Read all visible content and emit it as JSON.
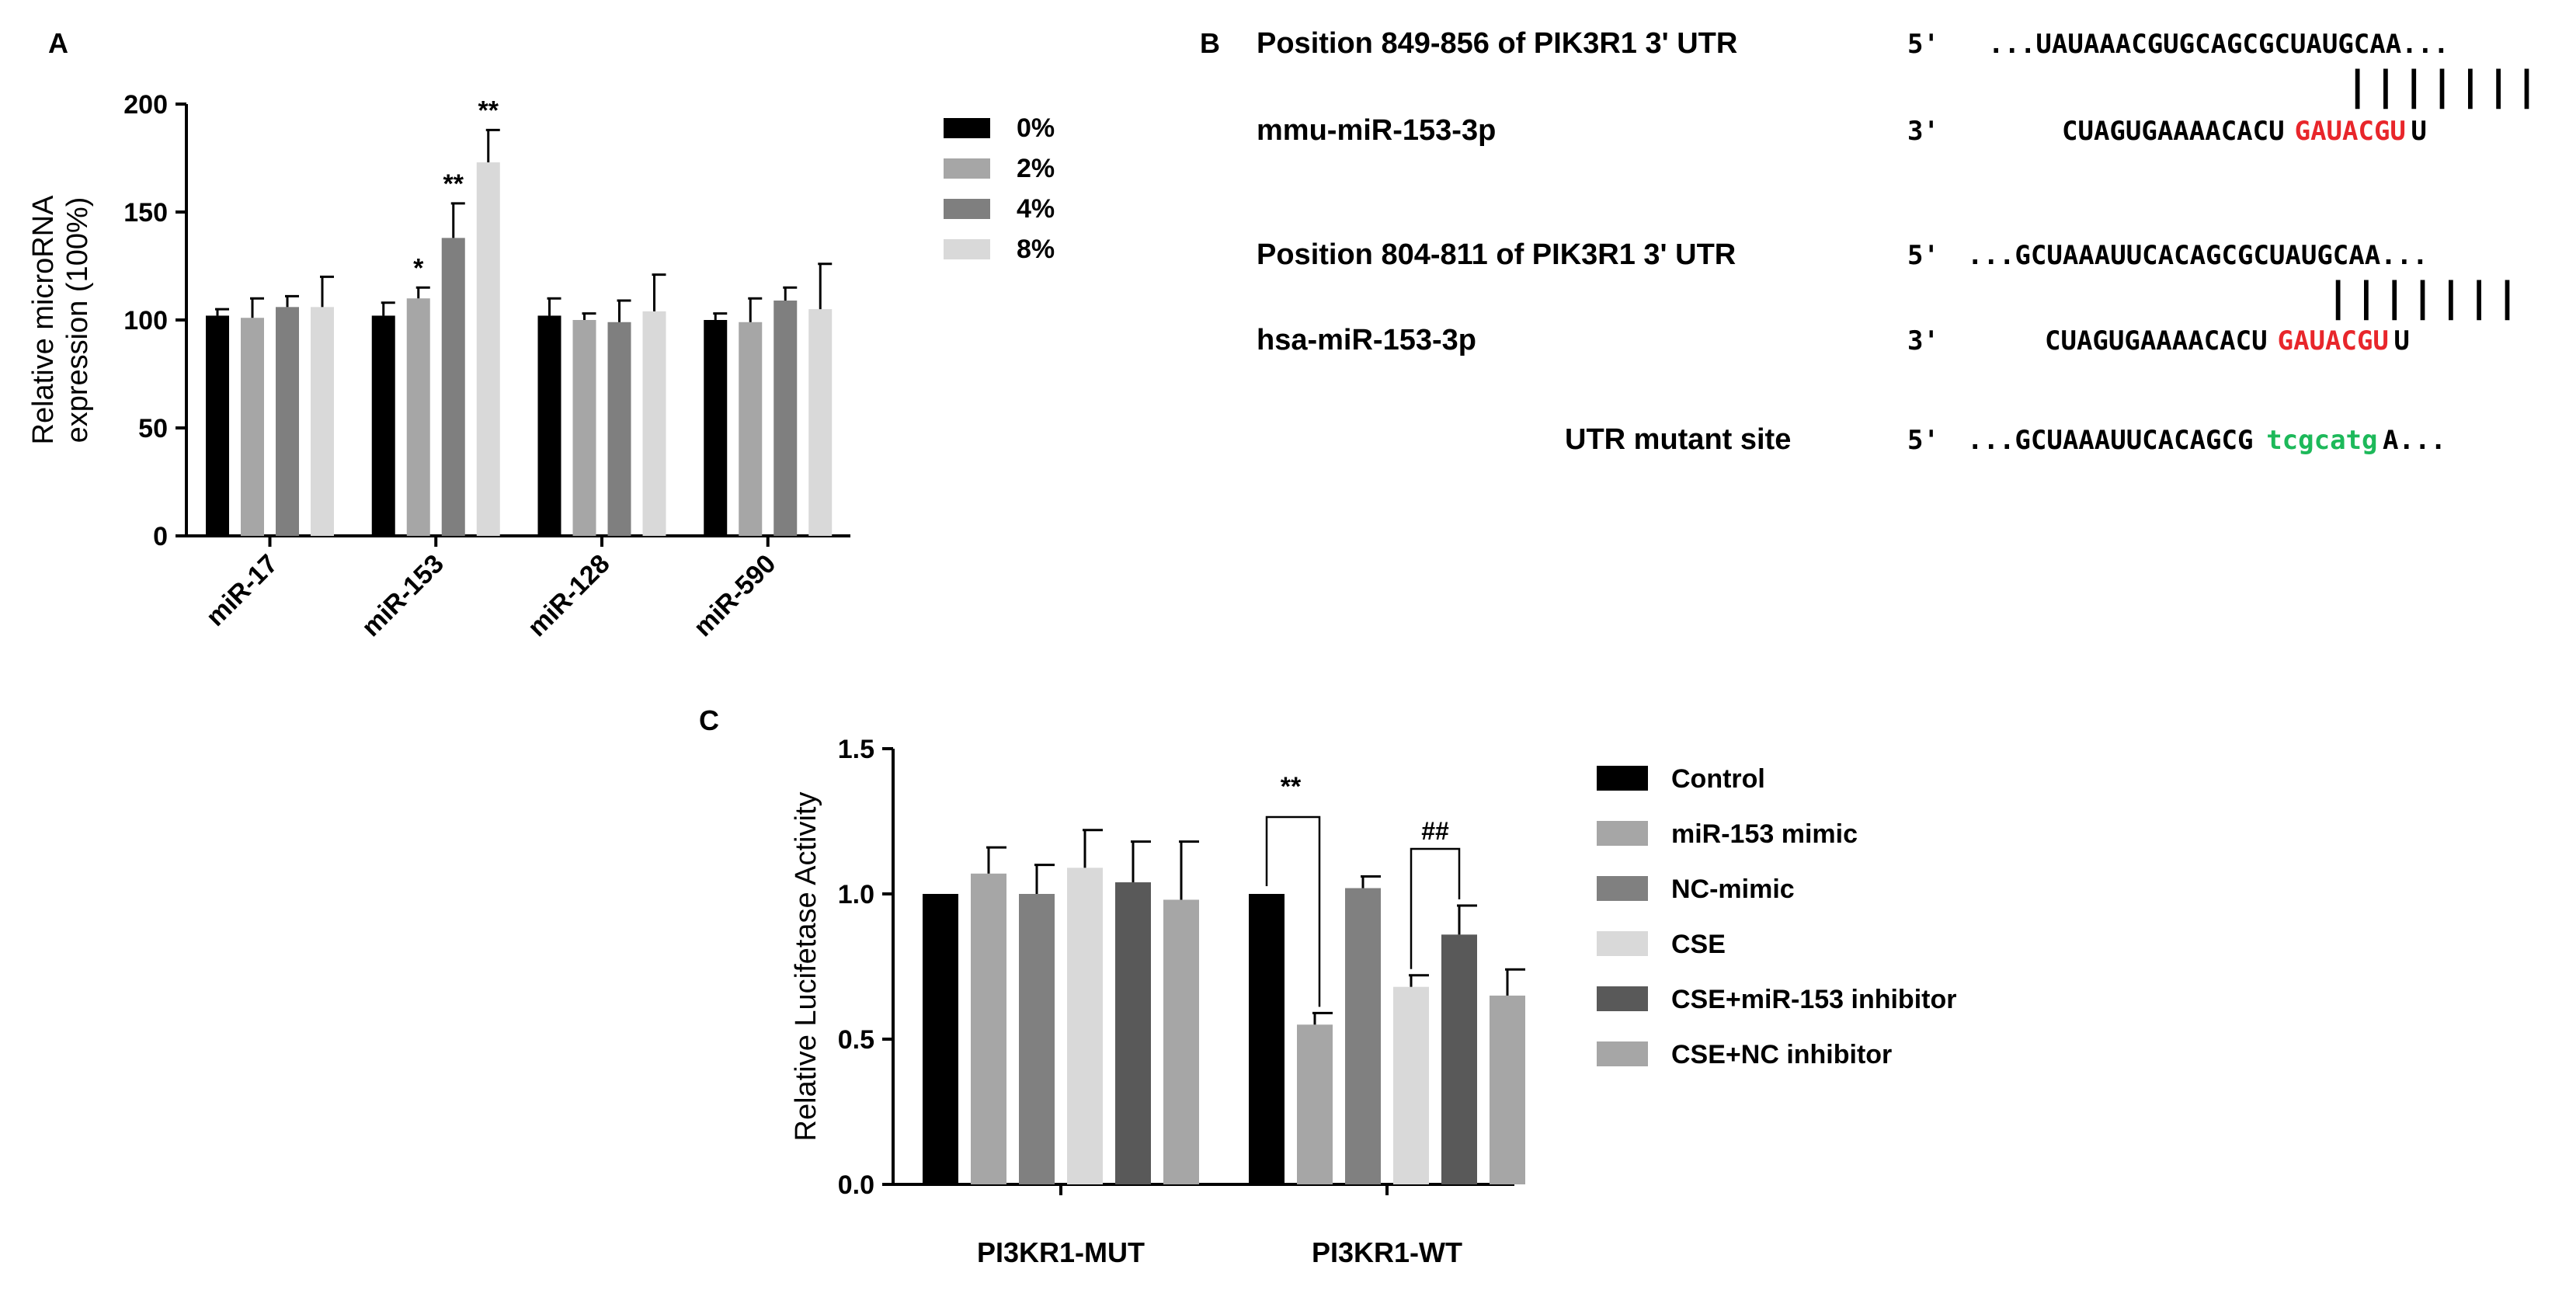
{
  "chart_data": [
    {
      "panel_label": "A",
      "type": "bar",
      "categories": [
        "miR-17",
        "miR-153",
        "miR-128",
        "miR-590"
      ],
      "ylabel_line1": "Relative microRNA",
      "ylabel_line2": "expression (100%)",
      "ylim": [
        0,
        200
      ],
      "yticks": [
        "0",
        "50",
        "100",
        "150",
        "200"
      ],
      "legend_placement": "right",
      "grid": false,
      "colors": [
        "#000000",
        "#a6a6a6",
        "#7f7f7f",
        "#d9d9d9"
      ],
      "series": [
        {
          "name": "0%",
          "values": [
            102,
            102,
            102,
            100
          ],
          "errors": [
            3,
            6,
            8,
            3
          ],
          "labels": [
            "",
            "",
            "",
            ""
          ]
        },
        {
          "name": "2%",
          "values": [
            101,
            110,
            100,
            99
          ],
          "errors": [
            9,
            5,
            3,
            11
          ],
          "labels": [
            "",
            "*",
            "",
            ""
          ]
        },
        {
          "name": "4%",
          "values": [
            106,
            138,
            99,
            109
          ],
          "errors": [
            5,
            16,
            10,
            6
          ],
          "labels": [
            "",
            "**",
            "",
            ""
          ]
        },
        {
          "name": "8%",
          "values": [
            106,
            173,
            104,
            105
          ],
          "errors": [
            14,
            15,
            17,
            21
          ],
          "labels": [
            "",
            "**",
            "",
            ""
          ]
        }
      ]
    },
    {
      "panel_label": "C",
      "type": "bar",
      "categories": [
        "PI3KR1-MUT",
        "PI3KR1-WT"
      ],
      "ylabel": "Relative Lucifetase Activity",
      "ylim": [
        0,
        1.5
      ],
      "yticks": [
        "0.0",
        "0.5",
        "1.0",
        "1.5"
      ],
      "legend_placement": "right",
      "grid": false,
      "colors": [
        "#000000",
        "#a6a6a6",
        "#808080",
        "#d9d9d9",
        "#595959",
        "#a6a6a6"
      ],
      "series": [
        {
          "name": "Control",
          "values": [
            1.0,
            1.0
          ],
          "errors": [
            0,
            0
          ]
        },
        {
          "name": "miR-153 mimic",
          "values": [
            1.07,
            0.55
          ],
          "errors": [
            0.09,
            0.04
          ]
        },
        {
          "name": "NC-mimic",
          "values": [
            1.0,
            1.02
          ],
          "errors": [
            0.1,
            0.04
          ]
        },
        {
          "name": "CSE",
          "values": [
            1.09,
            0.68
          ],
          "errors": [
            0.13,
            0.04
          ]
        },
        {
          "name": "CSE+miR-153 inhibitor",
          "values": [
            1.04,
            0.86
          ],
          "errors": [
            0.14,
            0.1
          ]
        },
        {
          "name": "CSE+NC inhibitor",
          "values": [
            0.98,
            0.65
          ],
          "errors": [
            0.2,
            0.09
          ]
        }
      ],
      "annotations": [
        "**",
        "##"
      ]
    }
  ],
  "panel_b": {
    "label": "B",
    "rows": [
      {
        "name": "Position 849-856 of PIK3R1 3' UTR",
        "end": "5'",
        "segments": [
          {
            "text": "...UAUAAACGUGCAGCGCUAUGCAA...",
            "color": "#000000"
          }
        ]
      },
      {
        "name": "",
        "end": "",
        "segments": [
          {
            "text": "|||||||",
            "color": "#000000"
          }
        ]
      },
      {
        "name": "mmu-miR-153-3p",
        "end": "3'",
        "segments": [
          {
            "text": "CUAGUGAAAACACU",
            "color": "#000000"
          },
          {
            "text": "GAUACGU",
            "color": "#e8262b"
          },
          {
            "text": "U",
            "color": "#000000"
          }
        ]
      },
      {
        "name": "Position 804-811 of PIK3R1 3' UTR",
        "end": "5'",
        "segments": [
          {
            "text": "...GCUAAAUUCACAGCGCUAUGCAA...",
            "color": "#000000"
          }
        ]
      },
      {
        "name": "",
        "end": "",
        "segments": [
          {
            "text": "|||||||",
            "color": "#000000"
          }
        ]
      },
      {
        "name": "hsa-miR-153-3p",
        "end": "3'",
        "segments": [
          {
            "text": "CUAGUGAAAACACU",
            "color": "#000000"
          },
          {
            "text": "GAUACGU",
            "color": "#e8262b"
          },
          {
            "text": "U",
            "color": "#000000"
          }
        ]
      },
      {
        "name": "UTR mutant site",
        "end": "5'",
        "segments": [
          {
            "text": "...GCUAAAUUCACAGCG",
            "color": "#000000"
          },
          {
            "text": "tcgcatg",
            "color": "#1db95a"
          },
          {
            "text": "A...",
            "color": "#000000"
          }
        ]
      }
    ]
  }
}
